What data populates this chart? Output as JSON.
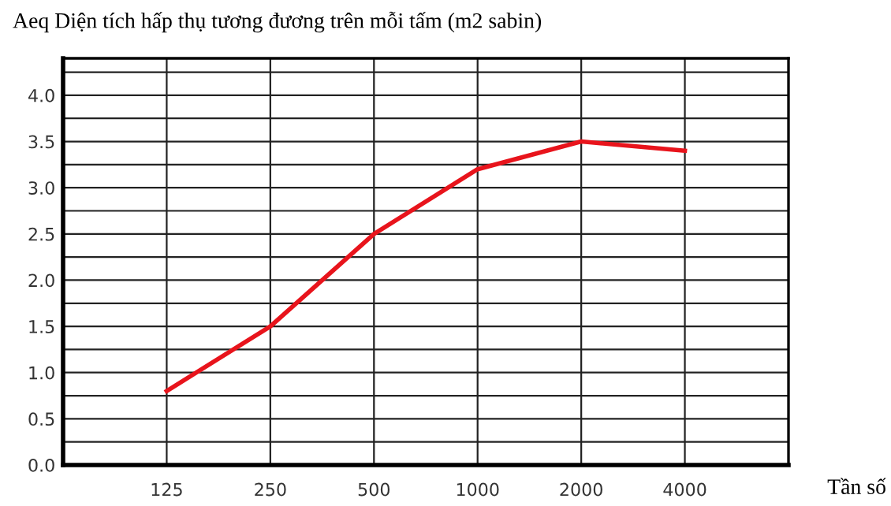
{
  "chart_data": {
    "type": "line",
    "title": "Aeq Diện tích hấp thụ tương đương trên mỗi tấm (m2 sabin)",
    "xlabel": "Tần số",
    "categories": [
      "125",
      "250",
      "500",
      "1000",
      "2000",
      "4000"
    ],
    "series": [
      {
        "color": "#e8141c",
        "values": [
          0.8,
          1.5,
          2.5,
          3.2,
          3.5,
          3.4
        ]
      }
    ],
    "ylim": [
      0,
      4.4
    ],
    "yticks": [
      {
        "value": 0,
        "label": "0.0"
      },
      {
        "value": 0.25,
        "label": null
      },
      {
        "value": 0.5,
        "label": "0.5"
      },
      {
        "value": 0.75,
        "label": null
      },
      {
        "value": 1,
        "label": "1.0"
      },
      {
        "value": 1.25,
        "label": null
      },
      {
        "value": 1.5,
        "label": "1.5"
      },
      {
        "value": 1.75,
        "label": null
      },
      {
        "value": 2,
        "label": "2.0"
      },
      {
        "value": 2.25,
        "label": null
      },
      {
        "value": 2.5,
        "label": "2.5"
      },
      {
        "value": 2.75,
        "label": null
      },
      {
        "value": 3,
        "label": "3.0"
      },
      {
        "value": 3.25,
        "label": null
      },
      {
        "value": 3.5,
        "label": "3.5"
      },
      {
        "value": 3.75,
        "label": null
      },
      {
        "value": 4,
        "label": "4.0"
      },
      {
        "value": 4.25,
        "label": null
      }
    ],
    "grid": true,
    "marker": "none",
    "line_style": "solid",
    "legend": false
  }
}
